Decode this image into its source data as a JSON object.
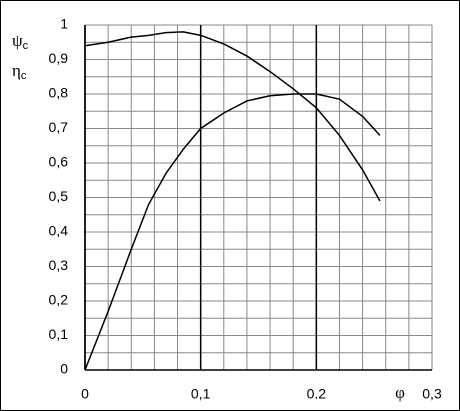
{
  "chart_data": {
    "type": "line",
    "y_labels": [
      {
        "symbol": "ψ",
        "sub": "c"
      },
      {
        "symbol": "η",
        "sub": "c"
      }
    ],
    "x_label": "φ",
    "x": [
      0,
      0.02,
      0.04,
      0.055,
      0.07,
      0.085,
      0.1,
      0.12,
      0.14,
      0.16,
      0.18,
      0.2,
      0.22,
      0.24,
      0.255
    ],
    "series": [
      {
        "color": "#000000",
        "values": [
          0.94,
          0.95,
          0.965,
          0.97,
          0.978,
          0.98,
          0.97,
          0.945,
          0.91,
          0.865,
          0.815,
          0.76,
          0.68,
          0.58,
          0.49
        ]
      },
      {
        "color": "#000000",
        "values": [
          0,
          0.17,
          0.35,
          0.48,
          0.57,
          0.64,
          0.7,
          0.745,
          0.78,
          0.795,
          0.8,
          0.8,
          0.785,
          0.735,
          0.68
        ]
      }
    ],
    "xlim": [
      0,
      0.3
    ],
    "ylim": [
      0,
      1
    ],
    "xticks": [
      0,
      {
        "value": 0.1,
        "label": "0,1"
      },
      {
        "value": 0.2,
        "label": "0.2"
      },
      {
        "value": 0.3,
        "label": "0,3"
      }
    ],
    "yticks": [
      0,
      {
        "value": 0.1,
        "label": "0,1"
      },
      {
        "value": 0.2,
        "label": "0,2"
      },
      {
        "value": 0.3,
        "label": "0,3"
      },
      {
        "value": 0.4,
        "label": "0,4"
      },
      {
        "value": 0.5,
        "label": "0,5"
      },
      {
        "value": 0.6,
        "label": "0,6"
      },
      {
        "value": 0.7,
        "label": "0,7"
      },
      {
        "value": 0.8,
        "label": "0,8"
      },
      {
        "value": 0.9,
        "label": "0,9"
      },
      1
    ],
    "x_minor_grid": [
      0.02,
      0.04,
      0.06,
      0.08,
      0.12,
      0.14,
      0.16,
      0.18,
      0.22,
      0.24,
      0.26,
      0.28,
      0.3
    ],
    "y_minor_grid": [
      0.05,
      0.15,
      0.25,
      0.35,
      0.45,
      0.55,
      0.65,
      0.75,
      0.85,
      0.95,
      1
    ],
    "grid": true
  }
}
